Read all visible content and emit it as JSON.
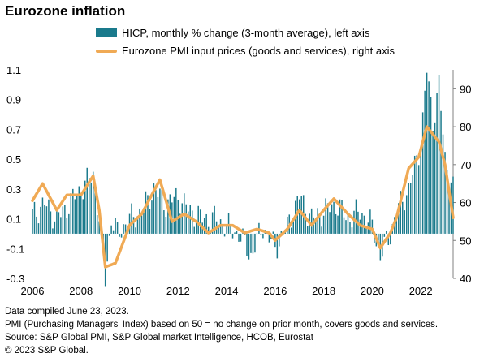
{
  "title": "Eurozone inflation",
  "legend": {
    "series_hicp": "HICP, monthly % change (3-month average), left axis",
    "series_pmi": "Eurozone PMI input prices (goods and services), right axis"
  },
  "footnotes": {
    "compiled": "Data compiled June 23, 2023.",
    "pmi_note": "PMI (Purchasing Managers' Index) based on 50 = no change on prior month, covers goods and services.",
    "source": "Source: S&P Global PMI,  S&P Global market Intelligence, HCOB, Eurostat",
    "copyright": "© 2023 S&P Global."
  },
  "colors": {
    "hicp": "#1a7a8c",
    "pmi": "#f0aa55",
    "axis": "#808080"
  },
  "chart_data": {
    "type": "bar",
    "left_axis": {
      "ylim": [
        -0.3,
        1.1
      ],
      "ticks": [
        -0.3,
        -0.1,
        0.1,
        0.3,
        0.5,
        0.7,
        0.9,
        1.1
      ],
      "tick_labels": [
        "-0.3",
        "-0.1",
        "0.1",
        "0.3",
        "0.5",
        "0.7",
        "0.9",
        "1.1"
      ]
    },
    "right_axis": {
      "ylim": [
        40,
        95
      ],
      "ticks": [
        40,
        50,
        60,
        70,
        80,
        90
      ],
      "tick_labels": [
        "40",
        "50",
        "60",
        "70",
        "80",
        "90"
      ]
    },
    "x_axis": {
      "ticks": [
        2006,
        2008,
        2010,
        2012,
        2014,
        2016,
        2018,
        2020,
        2022
      ],
      "tick_labels": [
        "2006",
        "2008",
        "2010",
        "2012",
        "2014",
        "2016",
        "2018",
        "2020",
        "2022"
      ],
      "range": [
        "2006-01",
        "2023-05"
      ]
    },
    "series": [
      {
        "name": "HICP, monthly % change (3-month average), left axis",
        "kind": "bar",
        "axis": "left",
        "points": [
          [
            "2006-01",
            0.13
          ],
          [
            "2006-07",
            0.2
          ],
          [
            "2007-01",
            0.1
          ],
          [
            "2007-07",
            0.2
          ],
          [
            "2008-01",
            0.3
          ],
          [
            "2008-07",
            0.4
          ],
          [
            "2008-10",
            0.1
          ],
          [
            "2009-01",
            -0.3
          ],
          [
            "2009-04",
            0.1
          ],
          [
            "2009-07",
            0.0
          ],
          [
            "2010-01",
            0.1
          ],
          [
            "2010-07",
            0.15
          ],
          [
            "2011-01",
            0.3
          ],
          [
            "2011-07",
            0.2
          ],
          [
            "2012-01",
            0.25
          ],
          [
            "2012-07",
            0.15
          ],
          [
            "2013-01",
            0.1
          ],
          [
            "2013-07",
            0.1
          ],
          [
            "2014-01",
            0.05
          ],
          [
            "2014-07",
            0.0
          ],
          [
            "2015-01",
            -0.15
          ],
          [
            "2015-07",
            0.05
          ],
          [
            "2016-01",
            -0.1
          ],
          [
            "2016-07",
            0.05
          ],
          [
            "2017-01",
            0.25
          ],
          [
            "2017-07",
            0.1
          ],
          [
            "2018-01",
            0.15
          ],
          [
            "2018-07",
            0.2
          ],
          [
            "2019-01",
            0.1
          ],
          [
            "2019-07",
            0.15
          ],
          [
            "2020-01",
            0.05
          ],
          [
            "2020-05",
            -0.15
          ],
          [
            "2020-10",
            0.0
          ],
          [
            "2021-01",
            0.15
          ],
          [
            "2021-07",
            0.3
          ],
          [
            "2021-10",
            0.45
          ],
          [
            "2022-01",
            0.6
          ],
          [
            "2022-04",
            1.1
          ],
          [
            "2022-07",
            0.75
          ],
          [
            "2022-10",
            1.0
          ],
          [
            "2023-01",
            0.5
          ],
          [
            "2023-05",
            0.3
          ]
        ]
      },
      {
        "name": "Eurozone PMI input prices (goods and services), right axis",
        "kind": "line",
        "axis": "right",
        "points": [
          [
            "2006-01",
            60.5
          ],
          [
            "2006-06",
            65
          ],
          [
            "2007-01",
            58
          ],
          [
            "2007-06",
            62
          ],
          [
            "2008-01",
            62
          ],
          [
            "2008-07",
            67
          ],
          [
            "2008-10",
            58
          ],
          [
            "2009-01",
            43
          ],
          [
            "2009-06",
            44
          ],
          [
            "2010-01",
            54
          ],
          [
            "2010-07",
            57
          ],
          [
            "2011-01",
            63
          ],
          [
            "2011-04",
            66
          ],
          [
            "2011-10",
            55
          ],
          [
            "2012-04",
            57
          ],
          [
            "2012-10",
            55
          ],
          [
            "2013-04",
            52
          ],
          [
            "2013-10",
            54
          ],
          [
            "2014-04",
            54
          ],
          [
            "2014-10",
            52
          ],
          [
            "2015-04",
            53
          ],
          [
            "2015-10",
            52
          ],
          [
            "2016-01",
            50
          ],
          [
            "2016-07",
            53
          ],
          [
            "2017-01",
            58
          ],
          [
            "2017-07",
            54
          ],
          [
            "2018-01",
            58
          ],
          [
            "2018-06",
            61
          ],
          [
            "2019-01",
            57
          ],
          [
            "2019-07",
            54
          ],
          [
            "2020-01",
            53
          ],
          [
            "2020-05",
            48
          ],
          [
            "2020-10",
            52
          ],
          [
            "2021-01",
            56
          ],
          [
            "2021-07",
            69
          ],
          [
            "2021-12",
            72
          ],
          [
            "2022-04",
            80
          ],
          [
            "2022-10",
            76
          ],
          [
            "2023-01",
            70
          ],
          [
            "2023-05",
            56
          ]
        ]
      }
    ]
  }
}
